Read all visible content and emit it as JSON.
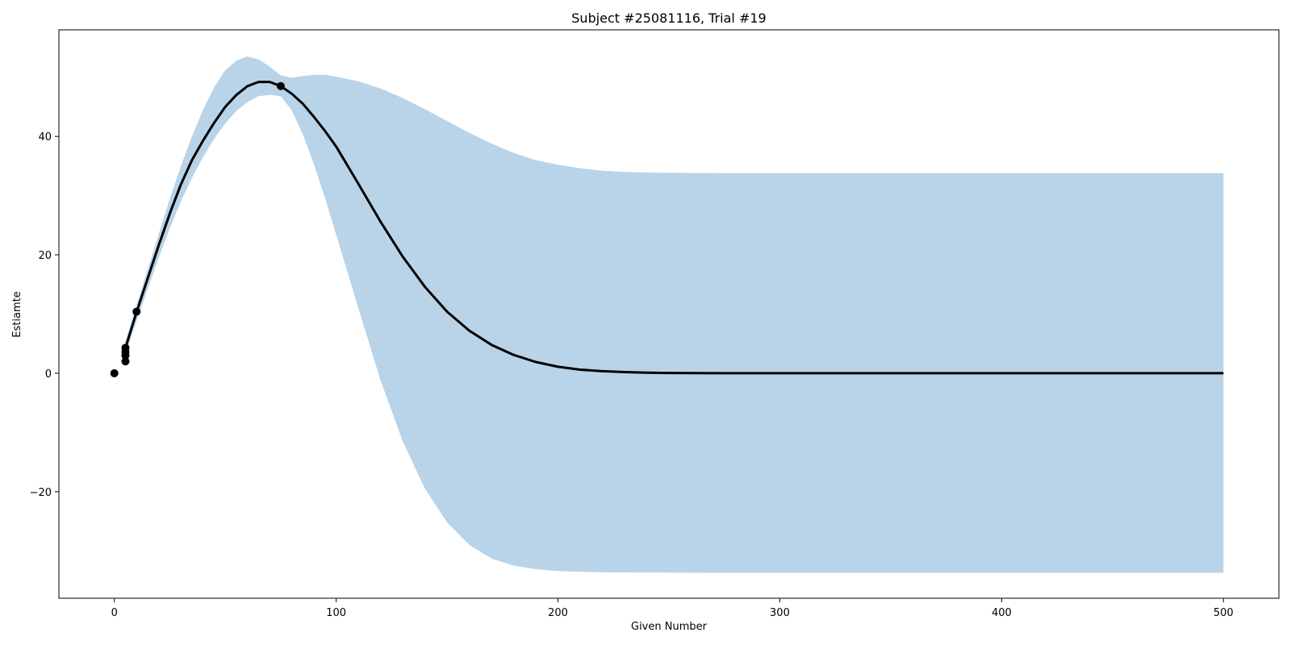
{
  "chart_data": {
    "type": "line",
    "title": "Subject #25081116, Trial #19",
    "xlabel": "Given Number",
    "ylabel": "Estiamte",
    "xlim": [
      -25,
      525
    ],
    "ylim": [
      -38,
      58
    ],
    "x_ticks": [
      0,
      100,
      200,
      300,
      400,
      500
    ],
    "x_tick_labels": [
      "0",
      "100",
      "200",
      "300",
      "400",
      "500"
    ],
    "y_ticks": [
      -20,
      0,
      20,
      40
    ],
    "y_tick_labels": [
      "−20",
      "0",
      "20",
      "40"
    ],
    "grid": false,
    "band_color": "#b9d4e8",
    "line_color": "#000000",
    "point_color": "#000000",
    "mean": [
      [
        5,
        4.3
      ],
      [
        10,
        10.3
      ],
      [
        15,
        16.0
      ],
      [
        20,
        21.6
      ],
      [
        25,
        27.0
      ],
      [
        30,
        31.9
      ],
      [
        35,
        36.0
      ],
      [
        40,
        39.3
      ],
      [
        45,
        42.3
      ],
      [
        50,
        45.0
      ],
      [
        55,
        47.0
      ],
      [
        60,
        48.5
      ],
      [
        65,
        49.2
      ],
      [
        70,
        49.2
      ],
      [
        75,
        48.5
      ],
      [
        80,
        47.2
      ],
      [
        85,
        45.5
      ],
      [
        90,
        43.3
      ],
      [
        95,
        40.9
      ],
      [
        100,
        38.3
      ],
      [
        110,
        32.0
      ],
      [
        120,
        25.6
      ],
      [
        130,
        19.7
      ],
      [
        140,
        14.6
      ],
      [
        150,
        10.4
      ],
      [
        160,
        7.2
      ],
      [
        170,
        4.8
      ],
      [
        180,
        3.1
      ],
      [
        190,
        1.9
      ],
      [
        200,
        1.1
      ],
      [
        210,
        0.6
      ],
      [
        220,
        0.35
      ],
      [
        230,
        0.2
      ],
      [
        240,
        0.1
      ],
      [
        250,
        0.05
      ],
      [
        275,
        0.01
      ],
      [
        300,
        0
      ],
      [
        350,
        0
      ],
      [
        400,
        0
      ],
      [
        450,
        0
      ],
      [
        500,
        0
      ]
    ],
    "band_upper": [
      [
        5,
        5.5
      ],
      [
        10,
        11.5
      ],
      [
        15,
        17.5
      ],
      [
        20,
        23.5
      ],
      [
        25,
        29.5
      ],
      [
        30,
        35.0
      ],
      [
        35,
        40.0
      ],
      [
        40,
        44.5
      ],
      [
        45,
        48.3
      ],
      [
        50,
        51.2
      ],
      [
        55,
        52.8
      ],
      [
        60,
        53.5
      ],
      [
        65,
        53.0
      ],
      [
        70,
        51.8
      ],
      [
        75,
        50.3
      ],
      [
        80,
        49.9
      ],
      [
        85,
        50.2
      ],
      [
        90,
        50.4
      ],
      [
        95,
        50.4
      ],
      [
        100,
        50.1
      ],
      [
        110,
        49.3
      ],
      [
        120,
        48.1
      ],
      [
        130,
        46.5
      ],
      [
        140,
        44.6
      ],
      [
        150,
        42.6
      ],
      [
        160,
        40.6
      ],
      [
        170,
        38.8
      ],
      [
        180,
        37.2
      ],
      [
        190,
        36.0
      ],
      [
        200,
        35.2
      ],
      [
        210,
        34.6
      ],
      [
        220,
        34.2
      ],
      [
        230,
        34.0
      ],
      [
        240,
        33.9
      ],
      [
        250,
        33.85
      ],
      [
        275,
        33.8
      ],
      [
        300,
        33.8
      ],
      [
        350,
        33.8
      ],
      [
        400,
        33.8
      ],
      [
        450,
        33.8
      ],
      [
        500,
        33.8
      ]
    ],
    "band_lower": [
      [
        5,
        3.2
      ],
      [
        10,
        8.8
      ],
      [
        15,
        14.2
      ],
      [
        20,
        19.5
      ],
      [
        25,
        24.5
      ],
      [
        30,
        29.0
      ],
      [
        35,
        33.0
      ],
      [
        40,
        36.5
      ],
      [
        45,
        39.6
      ],
      [
        50,
        42.2
      ],
      [
        55,
        44.3
      ],
      [
        60,
        45.8
      ],
      [
        65,
        46.8
      ],
      [
        70,
        47.0
      ],
      [
        75,
        46.8
      ],
      [
        80,
        44.4
      ],
      [
        85,
        40.3
      ],
      [
        90,
        35.3
      ],
      [
        95,
        29.6
      ],
      [
        100,
        23.4
      ],
      [
        110,
        11.0
      ],
      [
        120,
        -1.2
      ],
      [
        130,
        -11.5
      ],
      [
        140,
        -19.5
      ],
      [
        150,
        -25.2
      ],
      [
        160,
        -29.0
      ],
      [
        170,
        -31.3
      ],
      [
        180,
        -32.5
      ],
      [
        190,
        -33.1
      ],
      [
        200,
        -33.4
      ],
      [
        210,
        -33.55
      ],
      [
        220,
        -33.62
      ],
      [
        230,
        -33.65
      ],
      [
        240,
        -33.67
      ],
      [
        250,
        -33.68
      ],
      [
        275,
        -33.7
      ],
      [
        300,
        -33.7
      ],
      [
        350,
        -33.7
      ],
      [
        400,
        -33.7
      ],
      [
        450,
        -33.7
      ],
      [
        500,
        -33.7
      ]
    ],
    "points": [
      [
        0,
        0
      ],
      [
        5,
        2.0
      ],
      [
        5,
        3.0
      ],
      [
        5,
        3.6
      ],
      [
        5,
        4.3
      ],
      [
        10,
        10.4
      ],
      [
        75,
        48.5
      ]
    ]
  }
}
